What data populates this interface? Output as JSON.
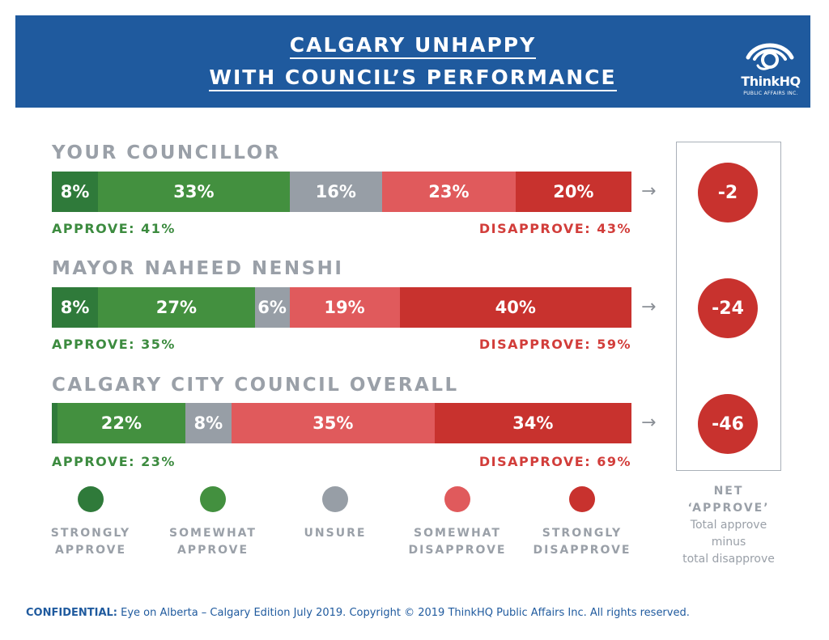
{
  "header": {
    "title_line1": "CALGARY UNHAPPY",
    "title_line2": "WITH COUNCIL’S PERFORMANCE",
    "logo_name": "ThinkHQ",
    "logo_sub": "PUBLIC AFFAIRS INC."
  },
  "colors": {
    "banner": "#1f5a9e",
    "strongly_approve": "#2f7a3a",
    "somewhat_approve": "#43903f",
    "unsure": "#979ea6",
    "somewhat_disapprove": "#e05a5c",
    "strongly_disapprove": "#c8322e"
  },
  "chart_data": {
    "type": "bar",
    "orientation": "horizontal-stacked",
    "series_names": [
      "STRONGLY APPROVE",
      "SOMEWHAT APPROVE",
      "UNSURE",
      "SOMEWHAT DISAPPROVE",
      "STRONGLY DISAPPROVE"
    ],
    "rows": [
      {
        "label": "YOUR COUNCILLOR",
        "values": [
          8,
          33,
          16,
          23,
          20
        ],
        "value_labels": [
          "8%",
          "33%",
          "16%",
          "23%",
          "20%"
        ],
        "approve_label": "APPROVE: 41%",
        "disapprove_label": "DISAPPROVE: 43%",
        "net": "-2"
      },
      {
        "label": "MAYOR NAHEED NENSHI",
        "values": [
          8,
          27,
          6,
          19,
          40
        ],
        "value_labels": [
          "8%",
          "27%",
          "6%",
          "19%",
          "40%"
        ],
        "approve_label": "APPROVE: 35%",
        "disapprove_label": "DISAPPROVE: 59%",
        "net": "-24"
      },
      {
        "label": "CALGARY CITY COUNCIL OVERALL",
        "values": [
          1,
          22,
          8,
          35,
          34
        ],
        "value_labels": [
          "",
          "22%",
          "8%",
          "35%",
          "34%"
        ],
        "approve_label": "APPROVE: 23%",
        "disapprove_label": "DISAPPROVE: 69%",
        "net": "-46"
      }
    ]
  },
  "legend": [
    {
      "label": "STRONGLY\nAPPROVE"
    },
    {
      "label": "SOMEWHAT\nAPPROVE"
    },
    {
      "label": "UNSURE"
    },
    {
      "label": "SOMEWHAT\nDISAPPROVE"
    },
    {
      "label": "STRONGLY\nDISAPPROVE"
    }
  ],
  "net_caption": {
    "title": "NET\n‘APPROVE’",
    "description": "Total approve\nminus\ntotal disapprove"
  },
  "footer": {
    "bold": "CONFIDENTIAL:",
    "text": " Eye on Alberta – Calgary Edition July 2019.  Copyright © 2019 ThinkHQ Public Affairs Inc. All rights reserved."
  }
}
